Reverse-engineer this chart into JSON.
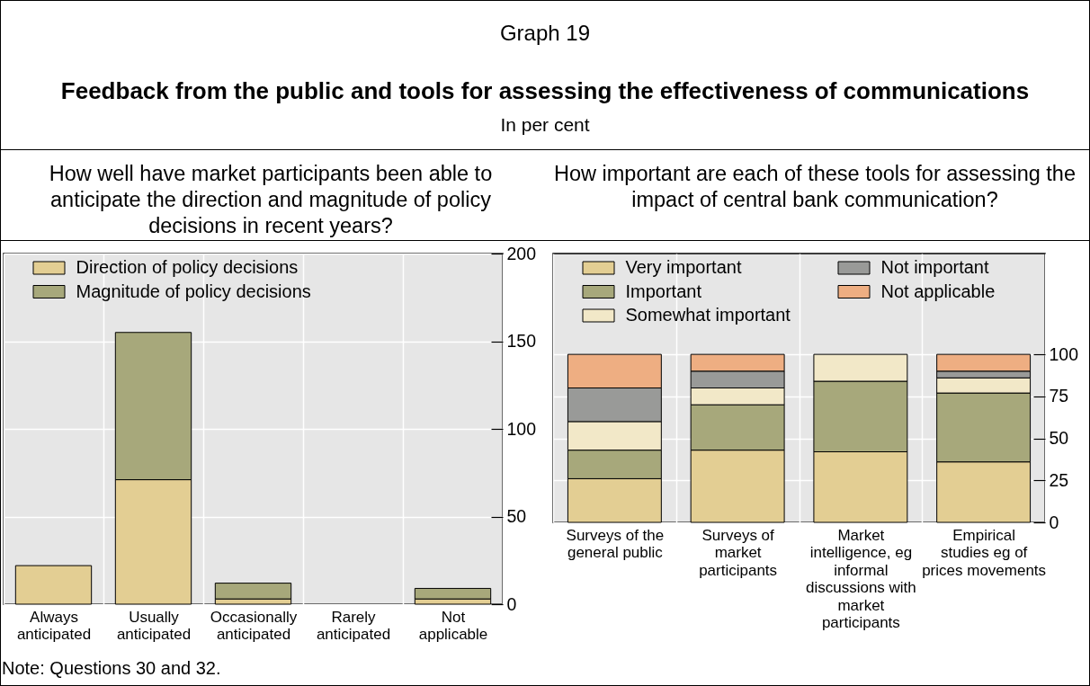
{
  "chart_data": [
    {
      "type": "other",
      "title": "Feedback from the public and tools for assessing the effectiveness of communications",
      "subtitle": "In per cent",
      "annotations": [
        "Graph 19",
        "Note: Questions 30 and 32."
      ]
    },
    {
      "type": "bar",
      "title": "How well have market participants been able to anticipate the direction and magnitude of policy decisions in recent years?",
      "categories": [
        "Always anticipated",
        "Usually anticipated",
        "Occasionally anticipated",
        "Rarely anticipated",
        "Not applicable"
      ],
      "stacked": true,
      "series": [
        {
          "name": "Direction of policy decisions",
          "color": "#e3ce93",
          "values": [
            22,
            71,
            3,
            0,
            3
          ]
        },
        {
          "name": "Magnitude of policy decisions",
          "color": "#a7a87b",
          "values": [
            0,
            84,
            9,
            0,
            6
          ]
        }
      ],
      "ylim": [
        0,
        200
      ],
      "yticks": [
        0,
        50,
        100,
        150,
        200
      ],
      "grid": true,
      "legend": "top left"
    },
    {
      "type": "bar",
      "title": "How important are each of these tools for assessing the impact of central bank communication?",
      "categories": [
        "Surveys of the general public",
        "Surveys of market participants",
        "Market intelligence, eg informal discussions with market participants",
        "Empirical studies eg of prices movements"
      ],
      "stacked": true,
      "series": [
        {
          "name": "Very important",
          "color": "#e3ce93",
          "values": [
            26,
            43,
            42,
            36
          ]
        },
        {
          "name": "Important",
          "color": "#a7a87b",
          "values": [
            17,
            27,
            42,
            41
          ]
        },
        {
          "name": "Somewhat important",
          "color": "#f2e8c8",
          "values": [
            17,
            10,
            16,
            9
          ]
        },
        {
          "name": "Not important",
          "color": "#999a98",
          "values": [
            20,
            10,
            0,
            4
          ]
        },
        {
          "name": "Not applicable",
          "color": "#eeae82",
          "values": [
            20,
            10,
            0,
            10
          ]
        }
      ],
      "ylim": [
        0,
        160
      ],
      "yticks": [
        0,
        25,
        50,
        75,
        100
      ],
      "grid": true,
      "legend": "top left"
    }
  ]
}
